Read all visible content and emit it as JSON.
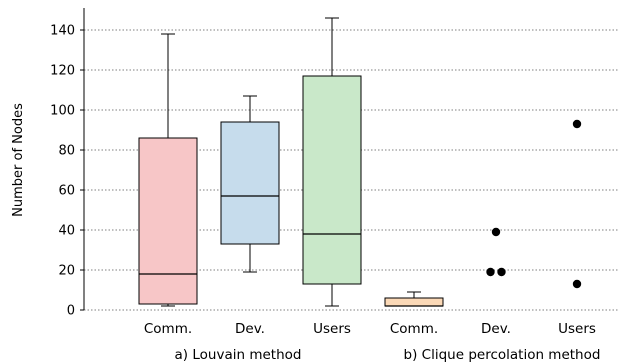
{
  "chart_data": {
    "type": "box",
    "ylabel": "Number of Nodes",
    "ylim": [
      0,
      150
    ],
    "yticks": [
      0,
      20,
      40,
      60,
      80,
      100,
      120,
      140
    ],
    "grid": "horizontal-dotted",
    "group_labels": [
      "a) Louvain method",
      "b) Clique percolation method"
    ],
    "boxes": [
      {
        "category": "Comm.",
        "group": 0,
        "color": "#f7c6c7",
        "whisker_low": 2,
        "q1": 3,
        "median": 18,
        "q3": 86,
        "whisker_high": 138,
        "outliers": []
      },
      {
        "category": "Dev.",
        "group": 0,
        "color": "#c6dcec",
        "whisker_low": 19,
        "q1": 33,
        "median": 57,
        "q3": 94,
        "whisker_high": 107,
        "outliers": []
      },
      {
        "category": "Users",
        "group": 0,
        "color": "#c9e8c9",
        "whisker_low": 2,
        "q1": 13,
        "median": 38,
        "q3": 117,
        "whisker_high": 146,
        "outliers": []
      },
      {
        "category": "Comm.",
        "group": 1,
        "color": "#fbd9b7",
        "whisker_low": 2,
        "q1": 2,
        "median": 2,
        "q3": 6,
        "whisker_high": 9,
        "outliers": []
      },
      {
        "category": "Dev.",
        "group": 1,
        "color": null,
        "whisker_low": null,
        "q1": null,
        "median": null,
        "q3": null,
        "whisker_high": null,
        "outliers": [
          39,
          19,
          19
        ]
      },
      {
        "category": "Users",
        "group": 1,
        "color": null,
        "whisker_low": null,
        "q1": null,
        "median": null,
        "q3": null,
        "whisker_high": null,
        "outliers": [
          93,
          13
        ]
      }
    ]
  }
}
